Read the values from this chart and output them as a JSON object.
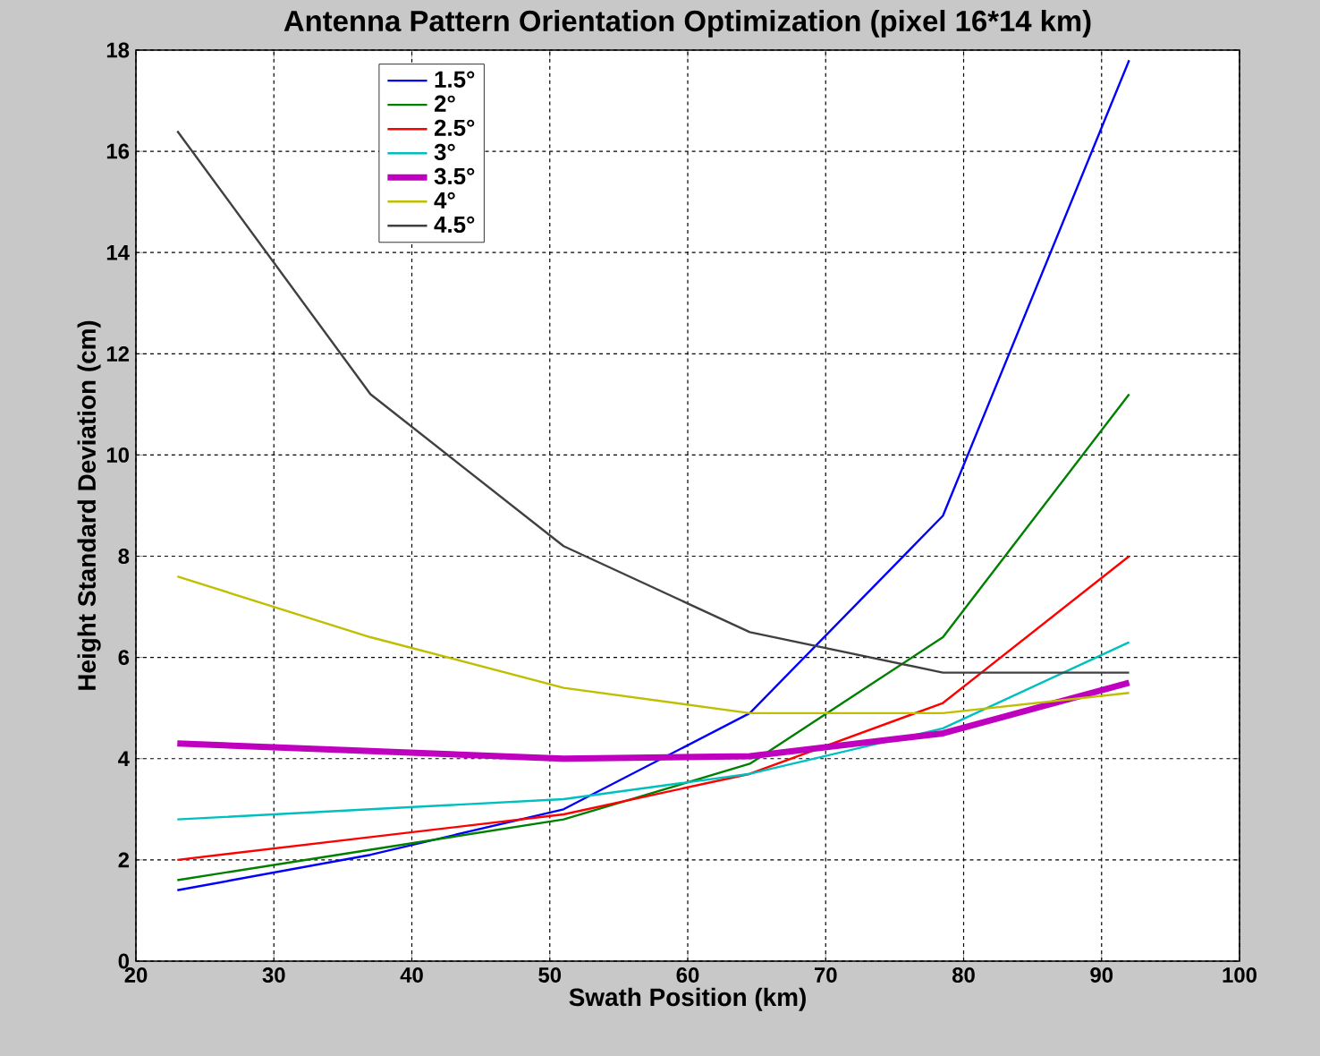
{
  "chart_data": {
    "type": "line",
    "title": "Antenna Pattern Orientation Optimization (pixel 16*14 km)",
    "xlabel": "Swath Position (km)",
    "ylabel": "Height Standard Deviation (cm)",
    "x": [
      23,
      37,
      51,
      64.5,
      78.5,
      92
    ],
    "series": [
      {
        "name": "1.5°",
        "color": "#0000ff",
        "values": [
          1.4,
          2.1,
          3.0,
          4.9,
          8.8,
          17.8
        ]
      },
      {
        "name": "2°",
        "color": "#008000",
        "values": [
          1.6,
          2.2,
          2.8,
          3.9,
          6.4,
          11.2
        ]
      },
      {
        "name": "2.5°",
        "color": "#ff0000",
        "values": [
          2.0,
          2.45,
          2.9,
          3.7,
          5.1,
          8.0
        ]
      },
      {
        "name": "3°",
        "color": "#00bfbf",
        "values": [
          2.8,
          3.0,
          3.2,
          3.7,
          4.6,
          6.3
        ]
      },
      {
        "name": "3.5°",
        "color": "#bf00bf",
        "values": [
          4.3,
          4.15,
          4.0,
          4.05,
          4.5,
          5.5
        ]
      },
      {
        "name": "4°",
        "color": "#bfbf00",
        "values": [
          7.6,
          6.4,
          5.4,
          4.9,
          4.9,
          5.3
        ]
      },
      {
        "name": "4.5°",
        "color": "#404040",
        "values": [
          16.4,
          11.2,
          8.2,
          6.5,
          5.7,
          5.7
        ]
      }
    ],
    "xlim": [
      20,
      100
    ],
    "ylim": [
      0,
      18
    ],
    "xticks": [
      20,
      30,
      40,
      50,
      60,
      70,
      80,
      90,
      100
    ],
    "yticks": [
      0,
      2,
      4,
      6,
      8,
      10,
      12,
      14,
      16,
      18
    ],
    "grid": true,
    "legend": "top",
    "line_style": "solid",
    "marker": "none"
  }
}
